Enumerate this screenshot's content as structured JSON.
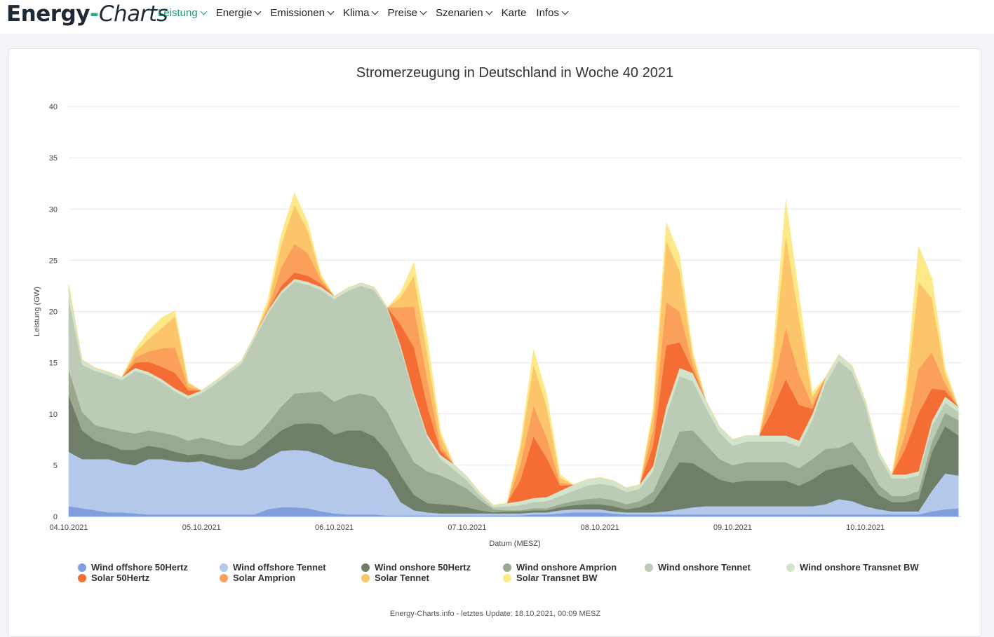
{
  "nav": {
    "logo_part1": "Energy",
    "logo_dash": "-",
    "logo_part2": "Charts",
    "items": [
      {
        "label": "Leistung",
        "dropdown": true,
        "active": true
      },
      {
        "label": "Energie",
        "dropdown": true
      },
      {
        "label": "Emissionen",
        "dropdown": true
      },
      {
        "label": "Klima",
        "dropdown": true
      },
      {
        "label": "Preise",
        "dropdown": true
      },
      {
        "label": "Szenarien",
        "dropdown": true
      },
      {
        "label": "Karte",
        "dropdown": false
      },
      {
        "label": "Infos",
        "dropdown": true
      }
    ],
    "active_color": "#1d9a7b"
  },
  "footer": "Energy-Charts.info - letztes Update: 18.10.2021, 00:09 MESZ",
  "chart_data": {
    "type": "area",
    "stacked": true,
    "title": "Stromerzeugung in Deutschland in Woche 40 2021",
    "xlabel": "Datum (MESZ)",
    "ylabel": "Leistung (GW)",
    "ylim": [
      0,
      40
    ],
    "yticks": [
      0,
      5,
      10,
      15,
      20,
      25,
      30,
      35,
      40
    ],
    "xlim": [
      0,
      6.72
    ],
    "xtick_values": [
      0,
      1,
      2,
      3,
      4,
      5,
      6
    ],
    "xtick_labels": [
      "04.10.2021",
      "05.10.2021",
      "06.10.2021",
      "07.10.2021",
      "08.10.2021",
      "09.10.2021",
      "10.10.2021"
    ],
    "grid": true,
    "x": [
      0,
      0.1,
      0.2,
      0.3,
      0.4,
      0.5,
      0.6,
      0.7,
      0.8,
      0.9,
      1,
      1.1,
      1.2,
      1.3,
      1.4,
      1.5,
      1.6,
      1.7,
      1.8,
      1.9,
      2,
      2.1,
      2.2,
      2.3,
      2.4,
      2.5,
      2.6,
      2.7,
      2.8,
      2.9,
      3,
      3.1,
      3.2,
      3.3,
      3.4,
      3.5,
      3.6,
      3.7,
      3.8,
      3.9,
      4,
      4.1,
      4.2,
      4.3,
      4.4,
      4.5,
      4.6,
      4.7,
      4.8,
      4.9,
      5,
      5.1,
      5.2,
      5.3,
      5.4,
      5.5,
      5.6,
      5.7,
      5.8,
      5.9,
      6,
      6.1,
      6.2,
      6.3,
      6.4,
      6.5,
      6.6,
      6.7
    ],
    "series": [
      {
        "name": "Wind offshore 50Hertz",
        "color": "#7f9fdc",
        "values": [
          1,
          0.8,
          0.6,
          0.4,
          0.4,
          0.3,
          0.2,
          0.2,
          0.2,
          0.2,
          0.2,
          0.2,
          0.2,
          0.2,
          0.2,
          0.7,
          0.9,
          0.9,
          0.8,
          0.5,
          0.3,
          0.2,
          0.2,
          0.2,
          0.1,
          0.1,
          0.1,
          0.1,
          0.1,
          0.1,
          0.1,
          0.1,
          0.1,
          0.1,
          0.1,
          0.2,
          0.2,
          0.3,
          0.4,
          0.4,
          0.4,
          0.3,
          0.2,
          0.2,
          0.2,
          0.2,
          0.2,
          0.2,
          0.2,
          0.2,
          0.2,
          0.2,
          0.2,
          0.2,
          0.2,
          0.2,
          0.2,
          0.2,
          0.2,
          0.2,
          0.2,
          0.2,
          0.2,
          0.2,
          0.2,
          0.5,
          0.7,
          0.8
        ]
      },
      {
        "name": "Wind offshore Tennet",
        "color": "#b3c8ea",
        "values": [
          5.3,
          4.8,
          5.0,
          5.2,
          4.8,
          4.7,
          5.4,
          5.4,
          5.2,
          5.1,
          5.2,
          4.8,
          4.5,
          4.3,
          4.6,
          5.0,
          5.5,
          5.6,
          5.6,
          5.5,
          5.1,
          4.9,
          4.6,
          4.4,
          3.5,
          1.3,
          0.5,
          0.3,
          0.2,
          0.2,
          0.2,
          0.2,
          0.2,
          0.2,
          0.2,
          0.2,
          0.2,
          0.3,
          0.3,
          0.3,
          0.3,
          0.2,
          0.2,
          0.2,
          0.2,
          0.3,
          0.5,
          0.7,
          0.8,
          0.8,
          0.8,
          0.8,
          0.8,
          0.8,
          0.8,
          0.8,
          0.8,
          1.0,
          1.5,
          1.3,
          0.8,
          0.5,
          0.3,
          0.3,
          0.3,
          2.0,
          3.5,
          3.2
        ]
      },
      {
        "name": "Wind onshore 50Hertz",
        "color": "#6f7e69",
        "values": [
          5.5,
          2.8,
          1.8,
          1.4,
          1.3,
          1.5,
          1.3,
          1.1,
          0.9,
          0.7,
          0.7,
          0.9,
          0.9,
          1.1,
          1.4,
          1.6,
          2.0,
          2.5,
          2.7,
          3.0,
          2.6,
          3.3,
          3.6,
          3.2,
          2.7,
          2.6,
          1.5,
          0.9,
          0.9,
          0.8,
          0.6,
          0.3,
          0.1,
          0.2,
          0.2,
          0.2,
          0.2,
          0.3,
          0.4,
          0.5,
          0.5,
          0.5,
          0.3,
          0.5,
          1.0,
          2.8,
          4.6,
          4.3,
          3.4,
          2.6,
          2.3,
          2.5,
          2.5,
          2.5,
          2.5,
          2.0,
          2.6,
          3.3,
          3.1,
          3.6,
          2.8,
          1.4,
          0.9,
          0.9,
          1.2,
          3.8,
          4.6,
          3.9
        ]
      },
      {
        "name": "Wind onshore Amprion",
        "color": "#98a98f",
        "values": [
          2.5,
          1.8,
          1.5,
          1.6,
          1.8,
          1.6,
          1.5,
          1.5,
          1.6,
          1.4,
          1.6,
          1.5,
          1.4,
          1.3,
          1.5,
          1.8,
          2.3,
          3.0,
          3.0,
          3.2,
          3.2,
          3.4,
          3.6,
          3.9,
          3.9,
          3.6,
          3.2,
          3.1,
          2.8,
          2.3,
          1.8,
          1.0,
          0.3,
          0.1,
          0.1,
          0.2,
          0.2,
          0.3,
          0.4,
          0.5,
          0.6,
          0.6,
          0.5,
          0.6,
          1.0,
          2.0,
          3.0,
          3.2,
          2.6,
          2.0,
          1.7,
          1.8,
          1.8,
          1.8,
          1.8,
          1.7,
          2.0,
          2.1,
          1.9,
          2.2,
          1.8,
          1.0,
          0.6,
          0.6,
          0.8,
          1.0,
          1.3,
          1.5
        ]
      },
      {
        "name": "Wind onshore Tennet",
        "color": "#bccbb6",
        "values": [
          7.0,
          4.6,
          5.3,
          5.2,
          5.0,
          6.1,
          5.4,
          4.9,
          4.3,
          4.1,
          4.3,
          5.5,
          6.9,
          8.0,
          9.7,
          10.7,
          11.0,
          10.9,
          10.5,
          9.9,
          10.0,
          10.2,
          10.5,
          10.4,
          10.0,
          8.8,
          6.4,
          3.3,
          1.6,
          1.2,
          0.8,
          0.4,
          0.2,
          0.4,
          0.5,
          0.6,
          0.7,
          0.8,
          1.0,
          1.3,
          1.4,
          1.4,
          1.2,
          1.2,
          2.0,
          4.6,
          5.4,
          4.8,
          3.6,
          2.6,
          1.9,
          2.0,
          2.0,
          2.0,
          2.0,
          2.1,
          3.8,
          6.4,
          8.5,
          6.8,
          5.2,
          2.8,
          1.7,
          1.7,
          1.5,
          1.5,
          1.0,
          0.8
        ]
      },
      {
        "name": "Wind onshore Transnet BW",
        "color": "#d3e4cc",
        "values": [
          1.3,
          0.5,
          0.3,
          0.3,
          0.3,
          0.3,
          0.3,
          0.3,
          0.3,
          0.3,
          0.3,
          0.3,
          0.3,
          0.3,
          0.3,
          0.3,
          0.3,
          0.3,
          0.3,
          0.3,
          0.3,
          0.3,
          0.3,
          0.3,
          0.2,
          0.3,
          0.3,
          0.3,
          0.4,
          0.5,
          0.4,
          0.3,
          0.2,
          0.3,
          0.4,
          0.4,
          0.4,
          0.5,
          0.6,
          0.6,
          0.6,
          0.5,
          0.4,
          0.4,
          0.5,
          0.8,
          0.8,
          0.8,
          0.7,
          0.6,
          0.6,
          0.6,
          0.6,
          0.6,
          0.6,
          0.6,
          0.6,
          0.6,
          0.6,
          0.6,
          0.5,
          0.5,
          0.4,
          0.4,
          0.4,
          0.5,
          0.6,
          0.5
        ]
      },
      {
        "name": "Solar 50Hertz",
        "color": "#f46d35",
        "values": [
          0,
          0,
          0,
          0,
          0,
          0.5,
          1.0,
          1.2,
          1.5,
          0.5,
          0,
          0,
          0,
          0,
          0,
          0,
          0.5,
          0.6,
          0.6,
          0.3,
          0,
          0,
          0,
          0,
          0,
          2.0,
          4.5,
          2.8,
          0.4,
          0,
          0,
          0,
          0,
          0,
          2.0,
          6.0,
          3.8,
          0.5,
          0,
          0,
          0,
          0,
          0,
          0,
          2.0,
          6.0,
          2.5,
          0.3,
          0,
          0,
          0,
          0,
          0,
          2.5,
          5.5,
          3.5,
          0.5,
          0,
          0,
          0,
          0,
          0,
          0,
          2.5,
          5.7,
          3.2,
          0.6,
          0
        ]
      },
      {
        "name": "Solar Amprion",
        "color": "#fba05a",
        "values": [
          0,
          0,
          0,
          0,
          0,
          0.5,
          1.0,
          1.8,
          2.5,
          0.3,
          0,
          0,
          0,
          0,
          0,
          0.2,
          1.8,
          2.8,
          2.2,
          0.4,
          0,
          0,
          0,
          0,
          0,
          1.7,
          4.0,
          2.6,
          0.5,
          0,
          0,
          0,
          0,
          0,
          1.5,
          3.0,
          2.0,
          0.3,
          0,
          0,
          0,
          0,
          0,
          0,
          1.6,
          4.2,
          3.0,
          0.6,
          0,
          0,
          0,
          0,
          0,
          2.0,
          5.0,
          3.0,
          0.4,
          0,
          0,
          0,
          0,
          0,
          0,
          1.5,
          4.3,
          3.5,
          0.7,
          0
        ]
      },
      {
        "name": "Solar Tennet",
        "color": "#fdc569",
        "values": [
          0,
          0,
          0,
          0,
          0,
          0.5,
          1.2,
          2.0,
          3.0,
          0.4,
          0,
          0,
          0,
          0,
          0,
          0.4,
          2.2,
          3.8,
          2.2,
          0.3,
          0,
          0,
          0,
          0,
          0,
          1.0,
          3.0,
          2.5,
          1.0,
          0,
          0,
          0,
          0,
          0,
          1.5,
          4.0,
          3.0,
          0.5,
          0,
          0,
          0,
          0,
          0,
          0,
          1.5,
          6.0,
          4.0,
          0.8,
          0,
          0,
          0,
          0,
          0,
          2.0,
          9.0,
          5.5,
          0.8,
          0,
          0,
          0,
          0,
          0,
          0,
          3.0,
          8.5,
          5.3,
          1.0,
          0
        ]
      },
      {
        "name": "Solar Transnet BW",
        "color": "#fde98a",
        "values": [
          0,
          0,
          0,
          0,
          0,
          0.3,
          0.8,
          1.0,
          0.6,
          0.1,
          0,
          0,
          0,
          0,
          0,
          0.5,
          1.0,
          1.2,
          0.8,
          0.2,
          0,
          0,
          0,
          0,
          0,
          0.5,
          1.3,
          1.5,
          0.4,
          0,
          0,
          0,
          0,
          0,
          0.5,
          1.5,
          1.2,
          0.3,
          0,
          0,
          0,
          0,
          0,
          0,
          0.5,
          1.8,
          1.5,
          0.4,
          0,
          0,
          0,
          0,
          0,
          1.0,
          3.5,
          2.3,
          0.4,
          0,
          0,
          0,
          0,
          0,
          0,
          1.0,
          3.5,
          2.0,
          0.5,
          0
        ]
      }
    ]
  }
}
